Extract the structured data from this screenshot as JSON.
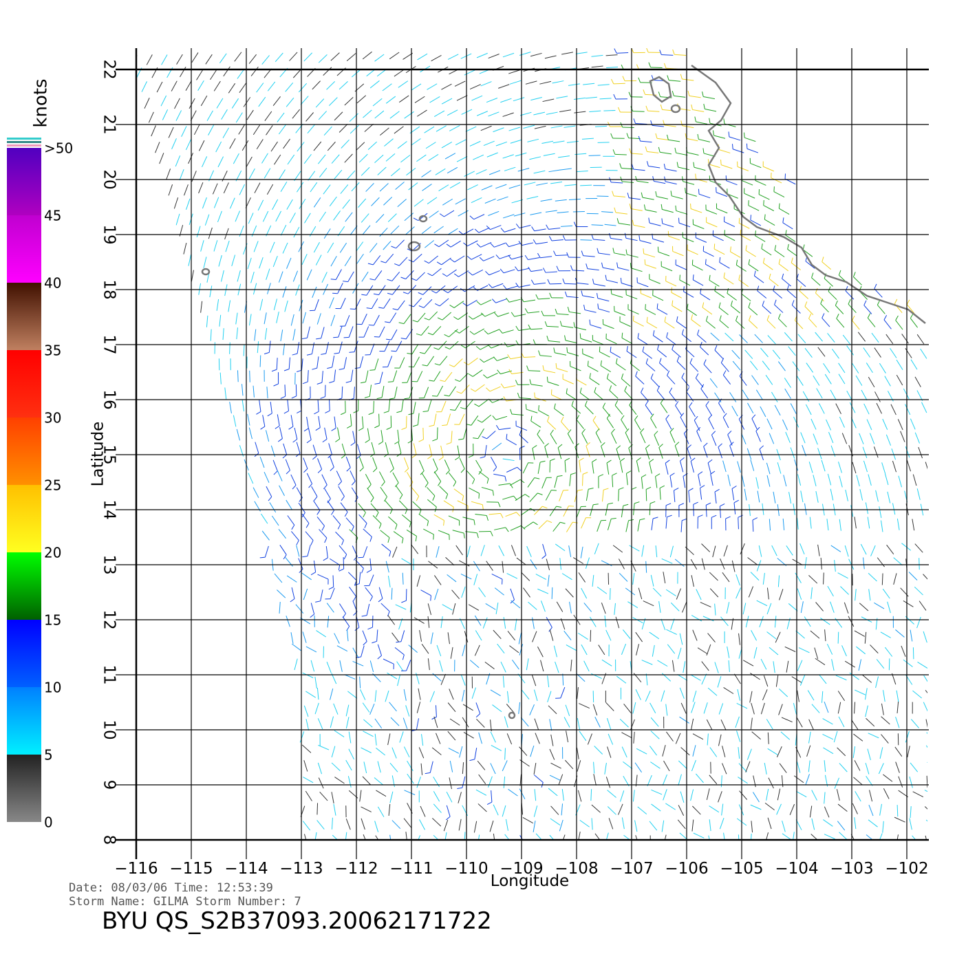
{
  "map": {
    "colorbar": {
      "unit": "knots",
      "ticks": [
        0,
        5,
        10,
        15,
        20,
        25,
        30,
        35,
        40,
        45,
        {
          "value": 50,
          "label": ">50"
        }
      ]
    },
    "xlabel": "Longitude",
    "ylabel": "Latitude",
    "xlim": [
      -116,
      -102
    ],
    "ylim": [
      8,
      22
    ],
    "xticks": [
      {
        "value": -116,
        "label": "−116"
      },
      {
        "value": -115,
        "label": "−115"
      },
      {
        "value": -114,
        "label": "−114"
      },
      {
        "value": -113,
        "label": "−113"
      },
      {
        "value": -112,
        "label": "−112"
      },
      {
        "value": -111,
        "label": "−111"
      },
      {
        "value": -110,
        "label": "−110"
      },
      {
        "value": -109,
        "label": "−109"
      },
      {
        "value": -108,
        "label": "−108"
      },
      {
        "value": -107,
        "label": "−107"
      },
      {
        "value": -106,
        "label": "−106"
      },
      {
        "value": -105,
        "label": "−105"
      },
      {
        "value": -104,
        "label": "−104"
      },
      {
        "value": -103,
        "label": "−103"
      },
      {
        "value": -102,
        "label": "−102"
      }
    ],
    "yticks": [
      8,
      9,
      10,
      11,
      12,
      13,
      14,
      15,
      16,
      17,
      18,
      19,
      20,
      21,
      22
    ],
    "info_line1": "Date: 08/03/06   Time: 12:53:39",
    "info_line2": "Storm Name: GILMA   Storm Number: 7",
    "product": "BYU  QS_S2B37093.20062171722"
  }
}
